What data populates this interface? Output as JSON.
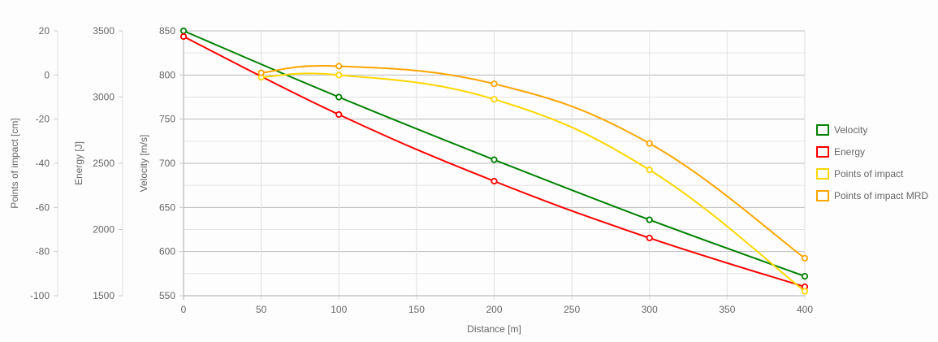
{
  "chart_data": {
    "type": "line",
    "title": "",
    "xlabel": "Distance [m]",
    "x_ticks": [
      0,
      50,
      100,
      150,
      200,
      250,
      300,
      350,
      400
    ],
    "xlim": [
      0,
      400
    ],
    "y_axes": [
      {
        "id": "poi",
        "label": "Points of impact [cm]",
        "ticks": [
          20,
          0,
          -20,
          -40,
          -60,
          -80,
          -100
        ],
        "range": [
          -100,
          20
        ]
      },
      {
        "id": "energy",
        "label": "Energy [J]",
        "ticks": [
          3500,
          3000,
          2500,
          2000,
          1500
        ],
        "range": [
          1500,
          3500
        ]
      },
      {
        "id": "velocity",
        "label": "Velocity [m/s]",
        "ticks": [
          850,
          800,
          750,
          700,
          650,
          600,
          550
        ],
        "range": [
          550,
          850
        ]
      }
    ],
    "grid": true,
    "legend_position": "right",
    "series": [
      {
        "name": "Velocity",
        "color": "#008000",
        "axis": "velocity",
        "x": [
          0,
          100,
          200,
          300,
          400
        ],
        "values": [
          850,
          775,
          704,
          636,
          572
        ]
      },
      {
        "name": "Energy",
        "color": "#ff0000",
        "axis": "energy",
        "x": [
          0,
          100,
          200,
          300,
          400
        ],
        "values": [
          3457,
          2868,
          2365,
          1936,
          1567
        ]
      },
      {
        "name": "Points of impact",
        "color": "#ffd700",
        "axis": "poi",
        "x": [
          50,
          100,
          200,
          300,
          400
        ],
        "values": [
          -1,
          0,
          -11,
          -43,
          -98
        ]
      },
      {
        "name": "Points of impact MRD",
        "color": "#ffa500",
        "axis": "poi",
        "x": [
          50,
          100,
          200,
          300,
          400
        ],
        "values": [
          1,
          4,
          -4,
          -31,
          -83
        ]
      }
    ]
  }
}
